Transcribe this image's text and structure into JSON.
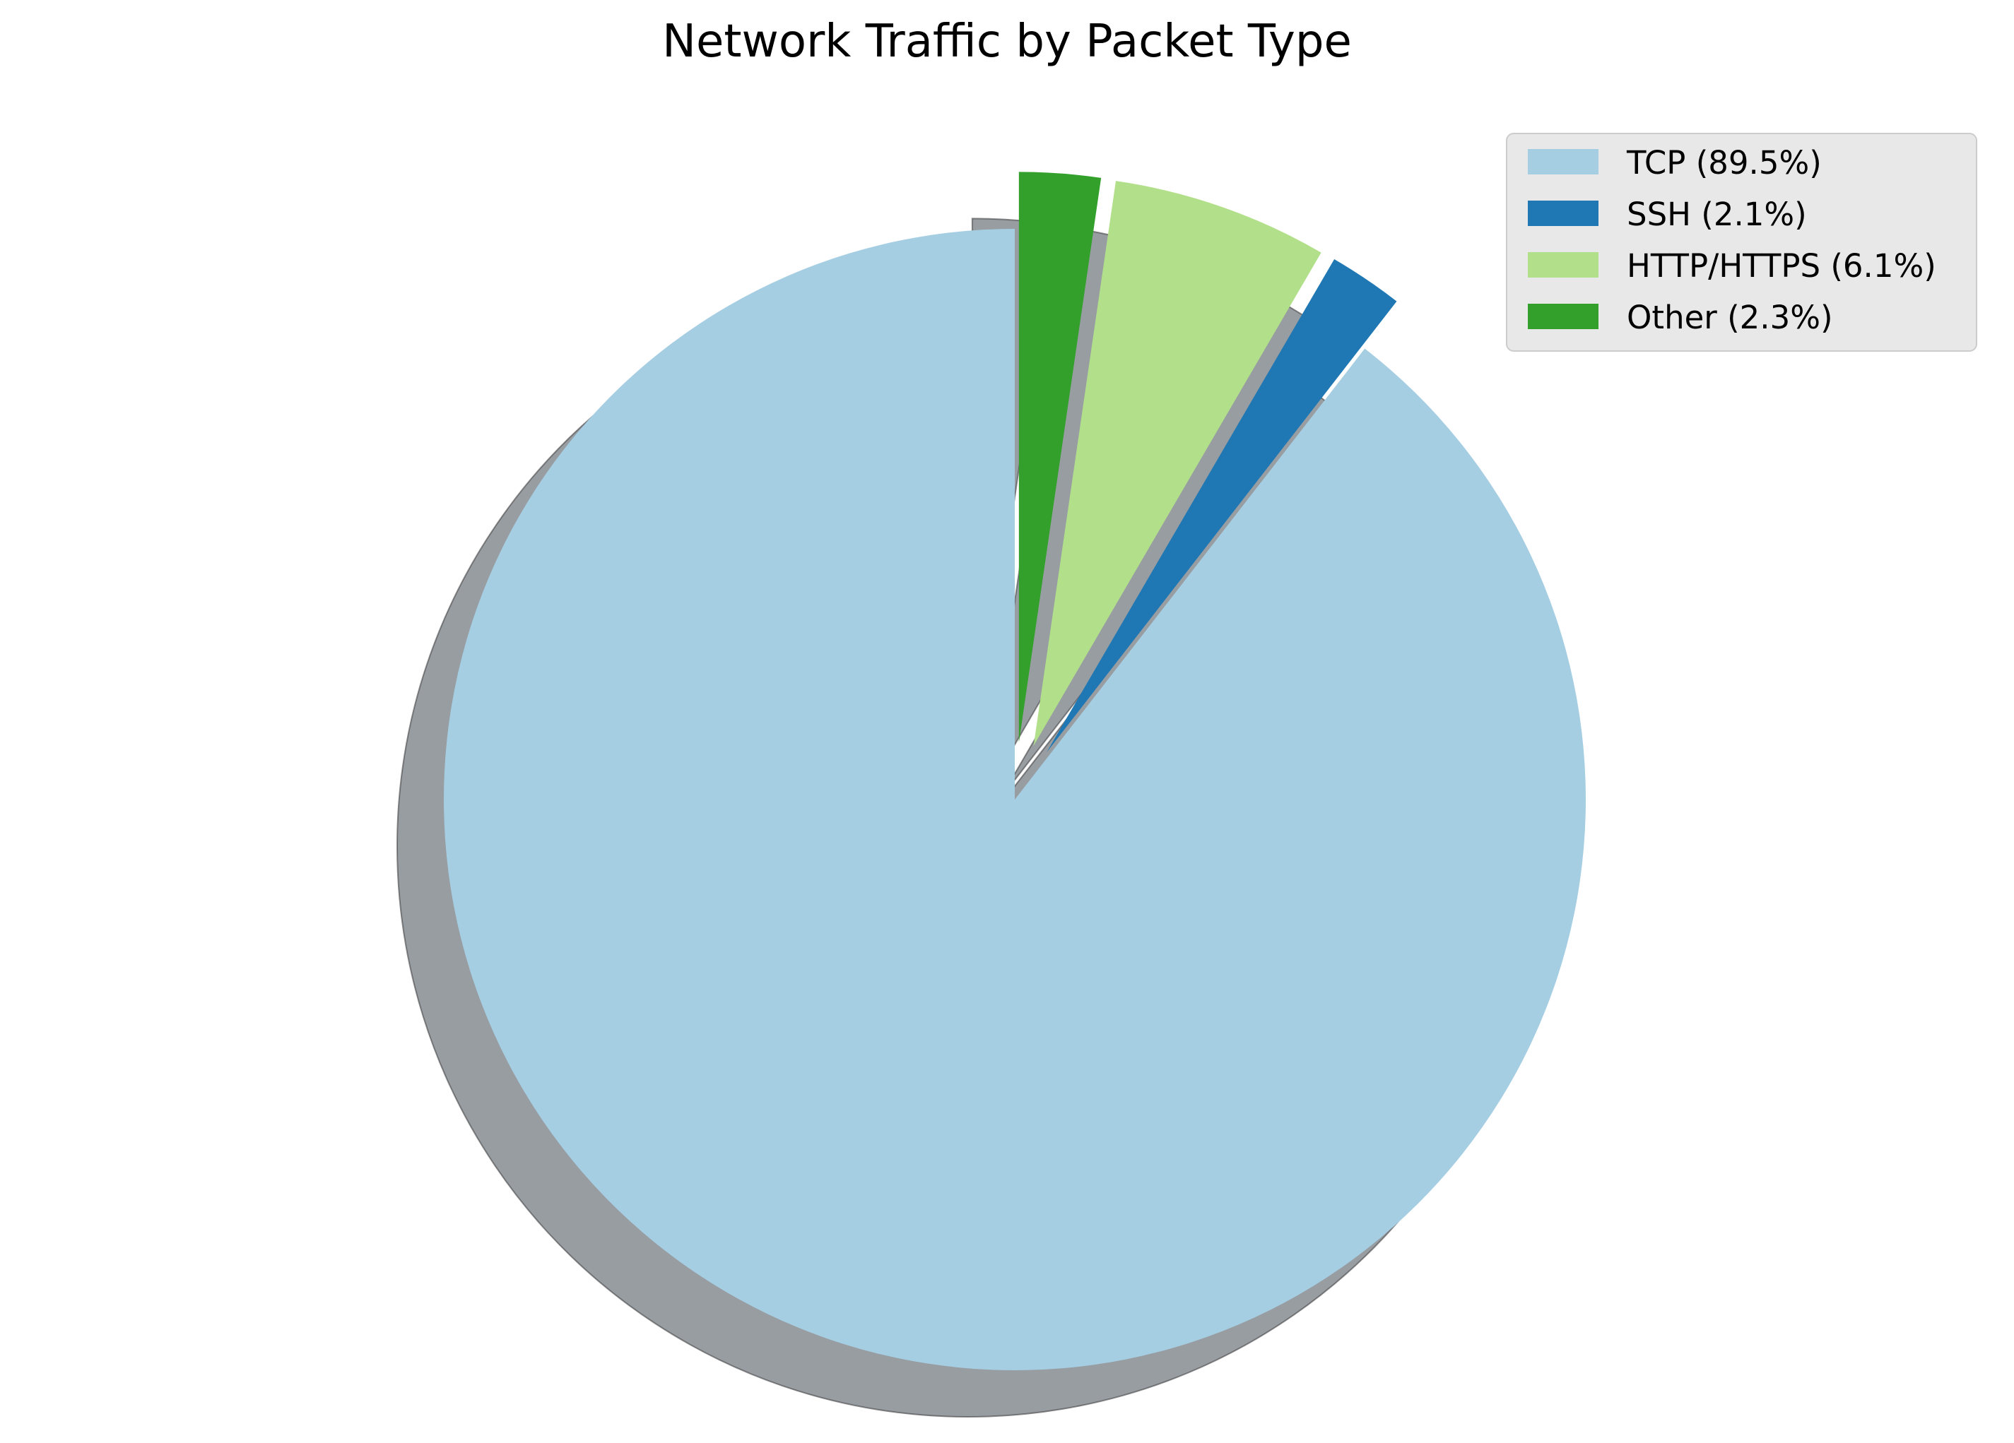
{
  "chart_data": {
    "type": "pie",
    "title": "Network Traffic by Packet Type",
    "start_angle_deg": 90,
    "direction": "counterclockwise",
    "shadow": true,
    "legend_position": "top-right",
    "slices": [
      {
        "label": "TCP",
        "legend_label": "TCP (89.5%)",
        "value": 89.5,
        "color": "#a6cee3",
        "exploded": false
      },
      {
        "label": "SSH",
        "legend_label": "SSH (2.1%)",
        "value": 2.1,
        "color": "#1f78b4",
        "exploded": true
      },
      {
        "label": "HTTP/HTTPS",
        "legend_label": "HTTP/HTTPS (6.1%)",
        "value": 6.1,
        "color": "#b2df8a",
        "exploded": true
      },
      {
        "label": "Other",
        "legend_label": "Other (2.3%)",
        "value": 2.3,
        "color": "#33a02c",
        "exploded": true
      }
    ]
  }
}
